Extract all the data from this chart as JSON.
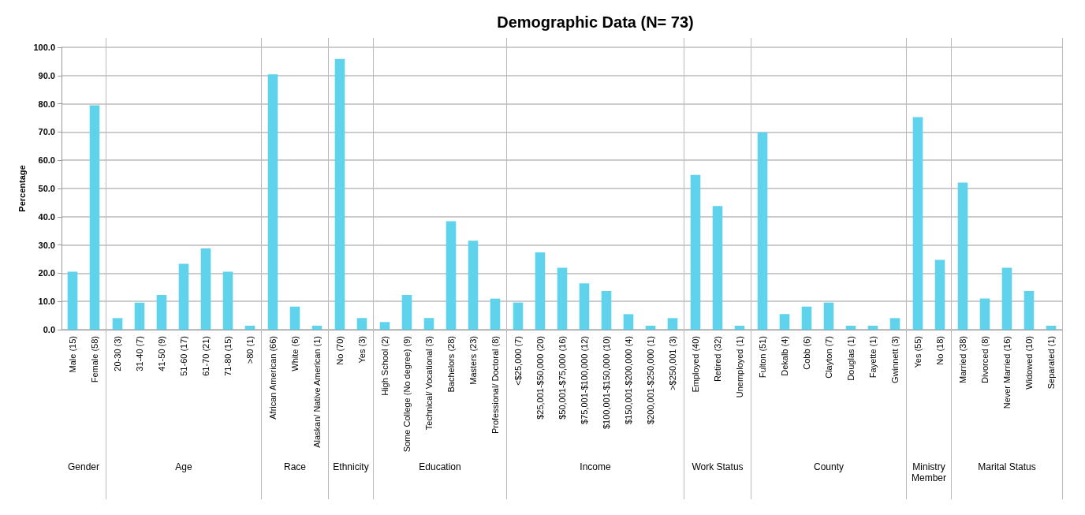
{
  "chart_data": [
    {
      "type": "bar",
      "ylabel": "Percentage",
      "xlabel": "Gender",
      "categories": [
        "Male (15)",
        "Female (58)"
      ],
      "values": [
        20.5,
        79.5
      ],
      "color": "#5fd3ec",
      "ylim": [
        0,
        100
      ],
      "yticks": [
        {
          "value": 0,
          "label": "0.0"
        },
        {
          "value": 10,
          "label": "10.0"
        },
        {
          "value": 20,
          "label": "20.0"
        },
        {
          "value": 30,
          "label": "30.0"
        },
        {
          "value": 40,
          "label": "40.0"
        },
        {
          "value": 50,
          "label": "50.0"
        },
        {
          "value": 60,
          "label": "60.0"
        },
        {
          "value": 70,
          "label": "70.0"
        },
        {
          "value": 80,
          "label": "80.0"
        },
        {
          "value": 90,
          "label": "90.0"
        },
        {
          "value": 100,
          "label": "100.0"
        }
      ],
      "grid": "y"
    },
    {
      "type": "bar",
      "xlabel": "Age",
      "categories": [
        "20-30 (3)",
        "31-40 (7)",
        "41-50 (9)",
        "51-60 (17)",
        "61-70 (21)",
        "71-80 (15)",
        ">80 (1)"
      ],
      "values": [
        4.1,
        9.6,
        12.3,
        23.3,
        28.8,
        20.5,
        1.4
      ],
      "color": "#5fd3ec",
      "ylim": [
        0,
        100
      ],
      "yticks": [
        0,
        10,
        20,
        30,
        40,
        50,
        60,
        70,
        80,
        90,
        100
      ],
      "grid": "y",
      "tick_labels": "x"
    },
    {
      "type": "bar",
      "xlabel": "Race",
      "categories": [
        "African American (66)",
        "White (6)",
        "Alaskan/ Native American (1)"
      ],
      "values": [
        90.4,
        8.2,
        1.4
      ],
      "color": "#5fd3ec",
      "ylim": [
        0,
        100
      ],
      "yticks": [
        0,
        10,
        20,
        30,
        40,
        50,
        60,
        70,
        80,
        90,
        100
      ],
      "grid": "y",
      "tick_labels": "x"
    },
    {
      "type": "bar",
      "xlabel": "Ethnicity",
      "categories": [
        "No (70)",
        "Yes (3)"
      ],
      "values": [
        95.9,
        4.1
      ],
      "color": "#5fd3ec",
      "ylim": [
        0,
        100
      ],
      "yticks": [
        0,
        10,
        20,
        30,
        40,
        50,
        60,
        70,
        80,
        90,
        100
      ],
      "grid": "y",
      "tick_labels": "x"
    },
    {
      "type": "bar",
      "xlabel": "Education",
      "categories": [
        "High School (2)",
        "Some College (No degree) (9)",
        "Technical/ Vocational (3)",
        "Bachelors (28)",
        "Masters (23)",
        "Professional/ Doctoral (8)"
      ],
      "values": [
        2.7,
        12.3,
        4.1,
        38.4,
        31.5,
        11.0
      ],
      "color": "#5fd3ec",
      "ylim": [
        0,
        100
      ],
      "yticks": [
        0,
        10,
        20,
        30,
        40,
        50,
        60,
        70,
        80,
        90,
        100
      ],
      "grid": "y",
      "tick_labels": "x"
    },
    {
      "type": "bar",
      "title": "Demographic Data (N= 73)",
      "xlabel": "Income",
      "categories": [
        "<$25,000 (7)",
        "$25,001-$50,000 (20)",
        "$50,001-$75,000 (16)",
        "$75,001-$100,000 (12)",
        "$100,001-$150,000 (10)",
        "$150,001-$200,000 (4)",
        "$200,001-$250,000 (1)",
        ">$250,001 (3)"
      ],
      "values": [
        9.6,
        27.4,
        21.9,
        16.4,
        13.7,
        5.5,
        1.4,
        4.1
      ],
      "color": "#5fd3ec",
      "ylim": [
        0,
        100
      ],
      "yticks": [
        0,
        10,
        20,
        30,
        40,
        50,
        60,
        70,
        80,
        90,
        100
      ],
      "grid": "y",
      "tick_labels": "x"
    },
    {
      "type": "bar",
      "xlabel": "Work Status",
      "categories": [
        "Employed (40)",
        "Retired (32)",
        "Unemployed (1)"
      ],
      "values": [
        54.8,
        43.8,
        1.4
      ],
      "color": "#5fd3ec",
      "ylim": [
        0,
        100
      ],
      "yticks": [
        0,
        10,
        20,
        30,
        40,
        50,
        60,
        70,
        80,
        90,
        100
      ],
      "grid": "y",
      "tick_labels": "x"
    },
    {
      "type": "bar",
      "xlabel": "County",
      "categories": [
        "Fulton (51)",
        "Dekalb (4)",
        "Cobb (6)",
        "Clayton (7)",
        "Douglas (1)",
        "Fayette (1)",
        "Gwinnett (3)"
      ],
      "values": [
        69.9,
        5.5,
        8.2,
        9.6,
        1.4,
        1.4,
        4.1
      ],
      "color": "#5fd3ec",
      "ylim": [
        0,
        100
      ],
      "yticks": [
        0,
        10,
        20,
        30,
        40,
        50,
        60,
        70,
        80,
        90,
        100
      ],
      "grid": "y",
      "tick_labels": "x"
    },
    {
      "type": "bar",
      "xlabel": "Ministry Member",
      "categories": [
        "Yes (55)",
        "No (18)"
      ],
      "values": [
        75.3,
        24.7
      ],
      "color": "#5fd3ec",
      "ylim": [
        0,
        100
      ],
      "yticks": [
        0,
        10,
        20,
        30,
        40,
        50,
        60,
        70,
        80,
        90,
        100
      ],
      "grid": "y",
      "tick_labels": "x"
    },
    {
      "type": "bar",
      "xlabel": "Marital Status",
      "categories": [
        "Married (38)",
        "Divorced (8)",
        "Never Married (16)",
        "Widowed (10)",
        "Separated (1)"
      ],
      "values": [
        52.1,
        11.0,
        21.9,
        13.7,
        1.4
      ],
      "color": "#5fd3ec",
      "ylim": [
        0,
        100
      ],
      "yticks": [
        0,
        10,
        20,
        30,
        40,
        50,
        60,
        70,
        80,
        90,
        100
      ],
      "grid": "y",
      "tick_labels": "x"
    }
  ]
}
